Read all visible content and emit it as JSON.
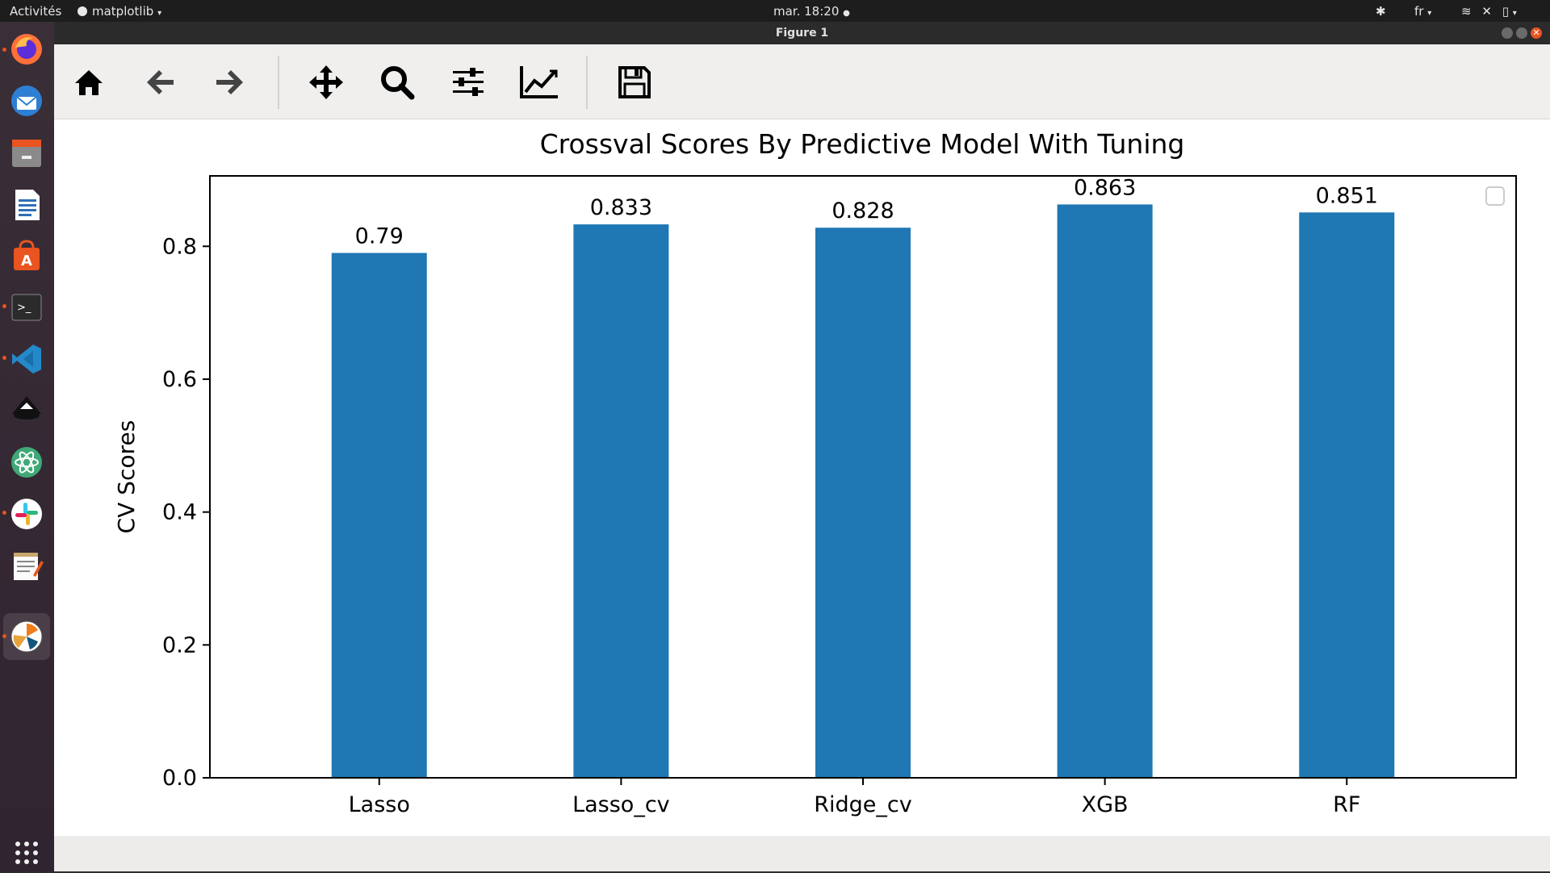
{
  "topbar": {
    "activities": "Activités",
    "app_name": "matplotlib",
    "clock": "mar. 18:20",
    "language": "fr"
  },
  "window": {
    "title": "Figure 1"
  },
  "dock": {
    "items": [
      "firefox-icon",
      "thunderbird-icon",
      "files-icon",
      "writer-icon",
      "software-center-icon",
      "terminal-icon",
      "vscode-icon",
      "inkscape-icon",
      "atom-icon",
      "slack-icon",
      "text-editor-icon",
      "matplotlib-icon"
    ],
    "show_apps": "apps-grid-icon"
  },
  "toolbar": {
    "buttons": [
      "home-icon",
      "back-icon",
      "forward-icon",
      "pan-icon",
      "zoom-icon",
      "configure-subplots-icon",
      "edit-axis-icon",
      "save-icon"
    ]
  },
  "chart_data": {
    "type": "bar",
    "title": "Crossval Scores By Predictive Model With Tuning",
    "xlabel": "",
    "ylabel": "CV Scores",
    "categories": [
      "Lasso",
      "Lasso_cv",
      "Ridge_cv",
      "XGB",
      "RF"
    ],
    "values": [
      0.79,
      0.833,
      0.828,
      0.863,
      0.851
    ],
    "data_labels": [
      "0.79",
      "0.833",
      "0.828",
      "0.863",
      "0.851"
    ],
    "ylim": [
      0,
      0.906
    ],
    "yticks": [
      "0.0",
      "0.2",
      "0.4",
      "0.6",
      "0.8"
    ],
    "ytick_values": [
      0,
      0.2,
      0.4,
      0.6,
      0.8
    ],
    "bar_color": "#1f77b4",
    "legend": "empty, top-right",
    "grid": false
  }
}
